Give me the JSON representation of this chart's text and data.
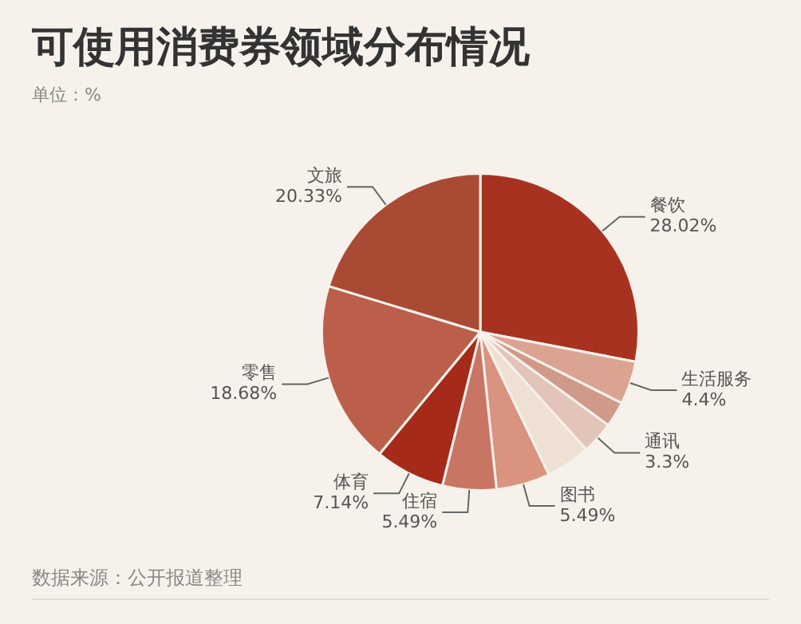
{
  "chart_data": {
    "type": "pie",
    "title": "可使用消费券领域分布情况",
    "subtitle": "单位：%",
    "annotations": [
      "数据来源：公开报道整理"
    ],
    "categories": [
      "餐饮",
      "生活服务",
      null,
      "通讯",
      null,
      "图书",
      "住宿",
      "体育",
      "零售",
      "文旅"
    ],
    "values": [
      28.02,
      4.4,
      2.6,
      3.3,
      4.55,
      5.49,
      5.49,
      7.14,
      18.68,
      20.33
    ],
    "value_labels": [
      "28.02%",
      "4.4%",
      null,
      "3.3%",
      null,
      "5.49%",
      "5.49%",
      "7.14%",
      "18.68%",
      "20.33%"
    ],
    "colors": [
      "#a83220",
      "#dba391",
      "#cf9a8a",
      "#e3c4b8",
      "#eee1d3",
      "#d9937f",
      "#c97563",
      "#a52a1a",
      "#bb5f4b",
      "#a94a35"
    ],
    "legend": false
  }
}
